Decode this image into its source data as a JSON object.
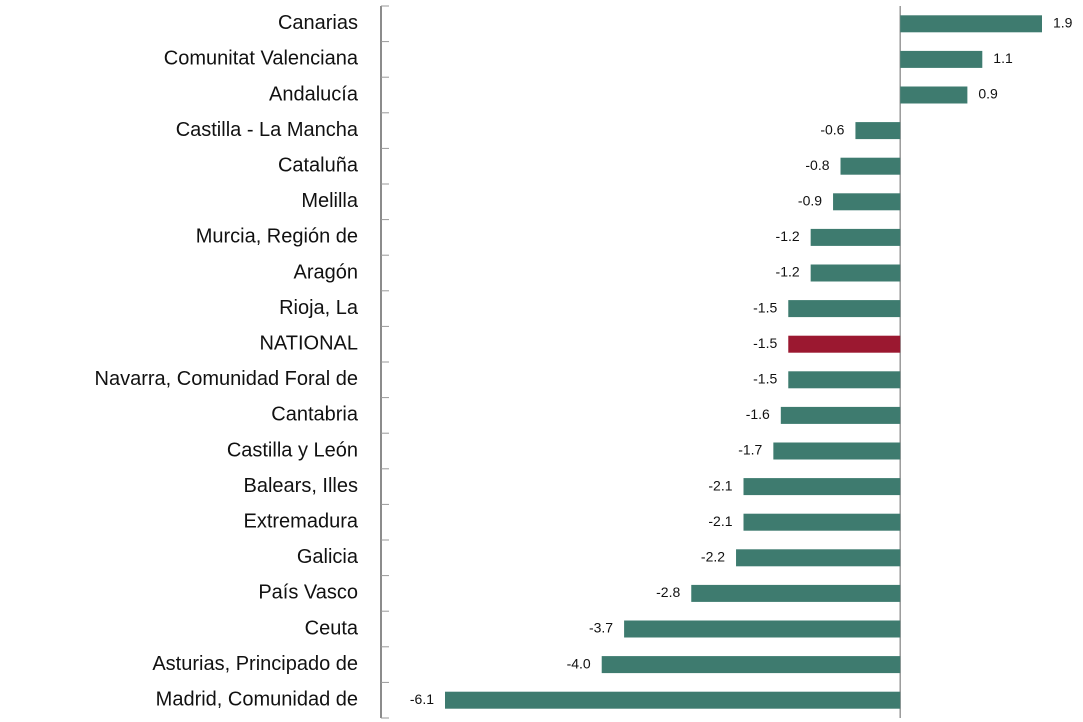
{
  "chart_data": {
    "type": "hbar",
    "categories": [
      "Canarias",
      "Comunitat Valenciana",
      "Andalucía",
      "Castilla - La Mancha",
      "Cataluña",
      "Melilla",
      "Murcia, Región de",
      "Aragón",
      "Rioja, La",
      "NATIONAL",
      "Navarra, Comunidad Foral de",
      "Cantabria",
      "Castilla y León",
      "Balears, Illes",
      "Extremadura",
      "Galicia",
      "País Vasco",
      "Ceuta",
      "Asturias, Principado de",
      "Madrid, Comunidad de"
    ],
    "values": [
      1.9,
      1.1,
      0.9,
      -0.6,
      -0.8,
      -0.9,
      -1.2,
      -1.2,
      -1.5,
      -1.5,
      -1.5,
      -1.6,
      -1.7,
      -2.1,
      -2.1,
      -2.2,
      -2.8,
      -3.7,
      -4.0,
      -6.1
    ],
    "value_labels": [
      "1.9",
      "1.1",
      "0.9",
      "-0.6",
      "-0.8",
      "-0.9",
      "-1.2",
      "-1.2",
      "-1.5",
      "-1.5",
      "-1.5",
      "-1.6",
      "-1.7",
      "-2.1",
      "-2.1",
      "-2.2",
      "-2.8",
      "-3.7",
      "-4.0",
      "-6.1"
    ],
    "colors": [
      "#3e7b6f",
      "#3e7b6f",
      "#3e7b6f",
      "#3e7b6f",
      "#3e7b6f",
      "#3e7b6f",
      "#3e7b6f",
      "#3e7b6f",
      "#3e7b6f",
      "#9b1830",
      "#3e7b6f",
      "#3e7b6f",
      "#3e7b6f",
      "#3e7b6f",
      "#3e7b6f",
      "#3e7b6f",
      "#3e7b6f",
      "#3e7b6f",
      "#3e7b6f",
      "#3e7b6f"
    ]
  }
}
